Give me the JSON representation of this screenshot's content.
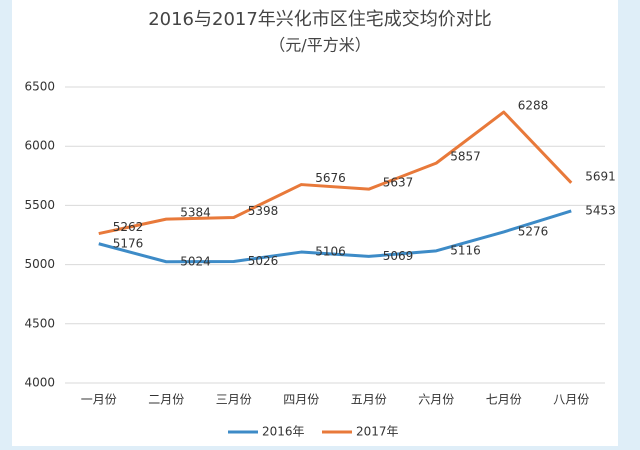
{
  "chart_data": {
    "type": "line",
    "title": "2016与2017年兴化市区住宅成交均价对比",
    "subtitle": "（元/平方米）",
    "categories": [
      "一月份",
      "二月份",
      "三月份",
      "四月份",
      "五月份",
      "六月份",
      "七月份",
      "八月份"
    ],
    "series": [
      {
        "name": "2016年",
        "color": "#3d8bc7",
        "values": [
          5176,
          5024,
          5026,
          5106,
          5069,
          5116,
          5276,
          5453
        ]
      },
      {
        "name": "2017年",
        "color": "#e8793a",
        "values": [
          5262,
          5384,
          5398,
          5676,
          5637,
          5857,
          6288,
          5691
        ]
      }
    ],
    "ylim": [
      4000,
      6500
    ],
    "yticks": [
      4000,
      4500,
      5000,
      5500,
      6000,
      6500
    ],
    "grid": true,
    "legend": "bottom"
  }
}
